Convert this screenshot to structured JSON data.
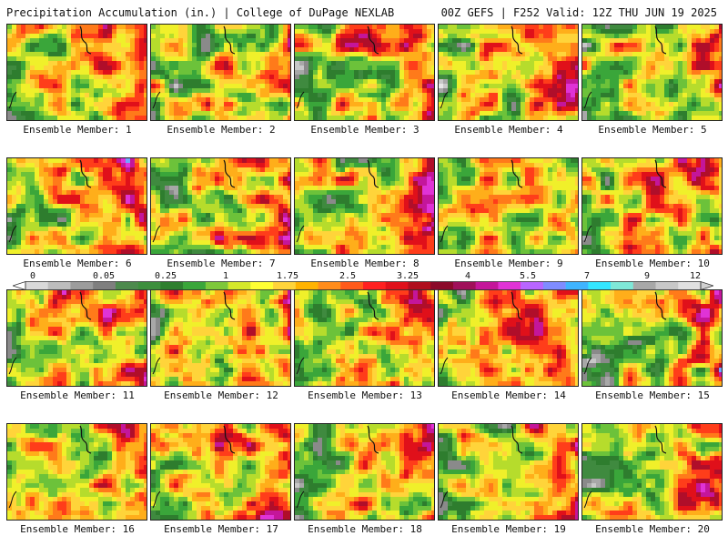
{
  "header": {
    "title_left": "Precipitation Accumulation (in.) | College of DuPage NEXLAB",
    "title_right": "00Z GEFS | F252 Valid: 12Z THU JUN 19 2025"
  },
  "panels": [
    {
      "label": "Ensemble Member: 1"
    },
    {
      "label": "Ensemble Member: 2"
    },
    {
      "label": "Ensemble Member: 3"
    },
    {
      "label": "Ensemble Member: 4"
    },
    {
      "label": "Ensemble Member: 5"
    },
    {
      "label": "Ensemble Member: 6"
    },
    {
      "label": "Ensemble Member: 7"
    },
    {
      "label": "Ensemble Member: 8"
    },
    {
      "label": "Ensemble Member: 9"
    },
    {
      "label": "Ensemble Member: 10"
    },
    {
      "label": "Ensemble Member: 11"
    },
    {
      "label": "Ensemble Member: 12"
    },
    {
      "label": "Ensemble Member: 13"
    },
    {
      "label": "Ensemble Member: 14"
    },
    {
      "label": "Ensemble Member: 15"
    },
    {
      "label": "Ensemble Member: 16"
    },
    {
      "label": "Ensemble Member: 17"
    },
    {
      "label": "Ensemble Member: 18"
    },
    {
      "label": "Ensemble Member: 19"
    },
    {
      "label": "Ensemble Member: 20"
    }
  ],
  "colorbar": {
    "tick_labels": [
      "0",
      "0.05",
      "0.25",
      "1",
      "1.75",
      "2.5",
      "3.25",
      "4",
      "5.5",
      "7",
      "9",
      "12"
    ],
    "colors": [
      "#d9d9d9",
      "#bdbdbd",
      "#9c9c9c",
      "#7f7f7f",
      "#4d8a4d",
      "#3d8f3d",
      "#2f7f2f",
      "#3aa63a",
      "#7ec83a",
      "#d4e82a",
      "#ffff33",
      "#ffd43a",
      "#ffb300",
      "#ff8c1a",
      "#ff5a1a",
      "#ff2020",
      "#e0101a",
      "#b00e1e",
      "#8b0a2a",
      "#a0105a",
      "#c4169a",
      "#e033d6",
      "#b866ff",
      "#7f8cff",
      "#3fb4ff",
      "#33e6ff",
      "#7fe8d8",
      "#a8a8a8",
      "#c8c8c8",
      "#e0e0e0"
    ]
  }
}
